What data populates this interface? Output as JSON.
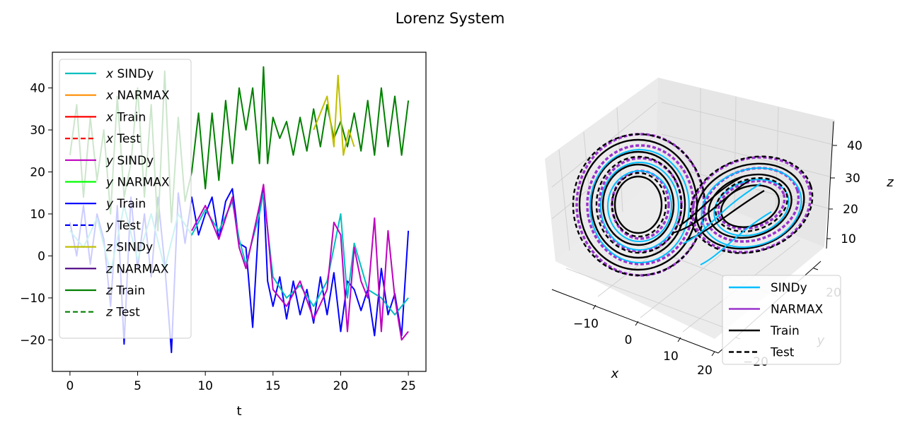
{
  "figure_title": "Lorenz System",
  "chart_data": [
    {
      "type": "line",
      "xlabel": "t",
      "ylabel": "",
      "xlim": [
        -1.3,
        26.3
      ],
      "ylim": [
        -27.5,
        48.5
      ],
      "xticks": [
        0,
        5,
        10,
        15,
        20,
        25
      ],
      "yticks": [
        -20,
        -10,
        0,
        10,
        20,
        30,
        40
      ],
      "legend_position": "upper left",
      "legend": [
        {
          "var": "x",
          "label": "SINDy",
          "color": "#00bfbf",
          "dash": false
        },
        {
          "var": "x",
          "label": "NARMAX",
          "color": "#ff8c00",
          "dash": false
        },
        {
          "var": "x",
          "label": "Train",
          "color": "#ff0000",
          "dash": false
        },
        {
          "var": "x",
          "label": "Test",
          "color": "#ff0000",
          "dash": true
        },
        {
          "var": "y",
          "label": "SINDy",
          "color": "#bf00bf",
          "dash": false
        },
        {
          "var": "y",
          "label": "NARMAX",
          "color": "#00ff00",
          "dash": false
        },
        {
          "var": "y",
          "label": "Train",
          "color": "#0000ff",
          "dash": false
        },
        {
          "var": "y",
          "label": "Test",
          "color": "#0000ff",
          "dash": true
        },
        {
          "var": "z",
          "label": "SINDy",
          "color": "#bfbf00",
          "dash": false
        },
        {
          "var": "z",
          "label": "NARMAX",
          "color": "#4b0082",
          "dash": false
        },
        {
          "var": "z",
          "label": "Train",
          "color": "#008000",
          "dash": false
        },
        {
          "var": "z",
          "label": "Test",
          "color": "#008000",
          "dash": true
        }
      ],
      "series": [
        {
          "name": "x/y test trajectory",
          "color": "#0000ff",
          "x": [
            0,
            0.5,
            1,
            1.5,
            2,
            2.5,
            3,
            3.5,
            4,
            4.5,
            5,
            5.5,
            6,
            6.5,
            7,
            7.5,
            8,
            8.5,
            9,
            9.5,
            10,
            10.5,
            11,
            11.5,
            12,
            12.5,
            13,
            13.5,
            14,
            14.3,
            14.6,
            15,
            15.5,
            16,
            16.5,
            17,
            17.5,
            18,
            18.5,
            19,
            19.5,
            20,
            20.5,
            21,
            21.5,
            22,
            22.5,
            23,
            23.5,
            24,
            24.5,
            25
          ],
          "y": [
            8,
            0,
            12,
            -2,
            10,
            4,
            -12,
            12,
            -21,
            14,
            -3,
            10,
            -5,
            14,
            -2,
            -23,
            15,
            3,
            14,
            5,
            10,
            14,
            4,
            13,
            16,
            3,
            2,
            -17,
            11,
            16,
            -6,
            -12,
            -5,
            -15,
            -6,
            -14,
            -8,
            -16,
            -5,
            -14,
            -4,
            -18,
            -6,
            -8,
            -13,
            -8,
            -19,
            -3,
            -14,
            -9,
            -19,
            6
          ]
        },
        {
          "name": "x SINDy",
          "color": "#00bfbf",
          "x": [
            0,
            1,
            2,
            3,
            4,
            5,
            6,
            7,
            8,
            9,
            10,
            11,
            12,
            12.5,
            13,
            14,
            14.3,
            15,
            16,
            17,
            18,
            19,
            20,
            20.5,
            21,
            22,
            23,
            24,
            25
          ],
          "y": [
            6,
            2,
            9,
            -4,
            12,
            -1,
            10,
            -3,
            10,
            5,
            11,
            6,
            13,
            4,
            -2,
            10,
            15,
            -5,
            -10,
            -7,
            -12,
            -6,
            10,
            -10,
            3,
            -8,
            -10,
            -14,
            -10
          ]
        },
        {
          "name": "y SINDy",
          "color": "#bf00bf",
          "x": [
            9,
            10,
            11,
            12,
            12.5,
            13,
            14,
            14.3,
            15,
            16,
            17,
            18,
            19,
            19.5,
            20,
            20.5,
            21,
            21.5,
            22,
            22.5,
            23,
            23.5,
            24,
            24.5,
            25
          ],
          "y": [
            6,
            12,
            4,
            14,
            2,
            -3,
            12,
            17,
            -8,
            -12,
            -6,
            -15,
            -8,
            8,
            5,
            -18,
            2,
            -6,
            -10,
            9,
            -18,
            6,
            -10,
            -20,
            -18
          ]
        },
        {
          "name": "z Test",
          "color": "#008000",
          "x": [
            0,
            0.5,
            1,
            1.5,
            2,
            2.5,
            3,
            3.5,
            4,
            4.5,
            5,
            5.5,
            6,
            6.5,
            7,
            7.5,
            8,
            8.5,
            9,
            9.5,
            10,
            10.5,
            11,
            11.5,
            12,
            12.5,
            13,
            13.5,
            14,
            14.3,
            14.6,
            15,
            15.5,
            16,
            16.5,
            17,
            17.5,
            18,
            18.5,
            19,
            19.5,
            20,
            20.5,
            21,
            21.5,
            22,
            22.5,
            23,
            23.5,
            24,
            24.5,
            25
          ],
          "y": [
            24,
            36,
            14,
            33,
            18,
            30,
            10,
            38,
            14,
            22,
            40,
            14,
            36,
            6,
            44,
            8,
            33,
            13,
            20,
            34,
            16,
            34,
            18,
            37,
            22,
            40,
            30,
            40,
            22,
            45,
            22,
            33,
            28,
            32,
            24,
            33,
            25,
            35,
            26,
            36,
            28,
            32,
            26,
            34,
            25,
            37,
            24,
            40,
            26,
            38,
            24,
            37
          ]
        },
        {
          "name": "z SINDy",
          "color": "#bfbf00",
          "x": [
            18,
            18.5,
            19,
            19.5,
            19.8,
            20.2,
            20.6,
            21
          ],
          "y": [
            30,
            34,
            38,
            26,
            43,
            24,
            30,
            26
          ]
        }
      ]
    },
    {
      "type": "line3d",
      "xlabel": "x",
      "ylabel": "y",
      "zlabel": "z",
      "xticks": [
        -10,
        0,
        10,
        20
      ],
      "yticks": [
        -20,
        20
      ],
      "zticks": [
        10,
        20,
        30,
        40
      ],
      "legend_position": "lower right",
      "legend": [
        {
          "label": "SINDy",
          "color": "#00bfff",
          "dash": false
        },
        {
          "label": "NARMAX",
          "color": "#9932cc",
          "dash": false
        },
        {
          "label": "Train",
          "color": "#000000",
          "dash": false
        },
        {
          "label": "Test",
          "color": "#000000",
          "dash": true
        }
      ]
    }
  ]
}
